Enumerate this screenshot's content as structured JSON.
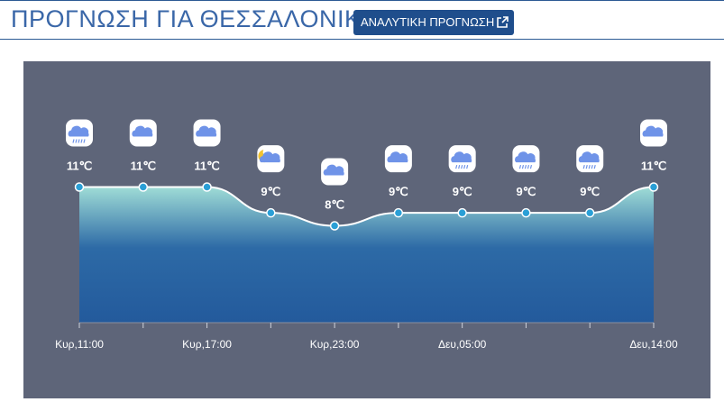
{
  "header": {
    "title": "ΠΡΟΓΝΩΣΗ ΓΙΑ ΘΕΣΣΑΛΟΝΙΚΗ",
    "button": "ΑΝΑΛΥΤΙΚΗ ΠΡΟΓΝΩΣΗ"
  },
  "chart_data": {
    "type": "area",
    "categories": [
      "Κυρ,11:00",
      null,
      "Κυρ,17:00",
      null,
      "Κυρ,23:00",
      null,
      "Δευ,05:00",
      null,
      null,
      "Δευ,14:00"
    ],
    "values": [
      11,
      11,
      11,
      9,
      8,
      9,
      9,
      9,
      9,
      11
    ],
    "value_labels": [
      "11℃",
      "11℃",
      "11℃",
      "9℃",
      "8℃",
      "9℃",
      "9℃",
      "9℃",
      "9℃",
      "11℃"
    ],
    "ylim": [
      0.5,
      12.5
    ],
    "color": "#2a9fd6"
  }
}
